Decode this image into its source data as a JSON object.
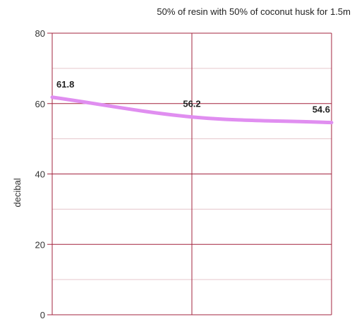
{
  "chart_data": {
    "type": "line",
    "title": "50% of resin with 50% of coconut husk for 1.5m",
    "xlabel": "",
    "ylabel": "decibal",
    "ylim": [
      0,
      80
    ],
    "yticks": [
      0,
      20,
      40,
      60,
      80
    ],
    "grid": true,
    "x": [
      1,
      2,
      3
    ],
    "series": [
      {
        "values": [
          61.8,
          56.2,
          54.6
        ],
        "labels": [
          "61.8",
          "56.2",
          "54.6"
        ]
      }
    ],
    "colors": {
      "line": "#e08ef0",
      "major_grid": "#a3243f",
      "minor_grid": "#e6c6cc"
    }
  }
}
